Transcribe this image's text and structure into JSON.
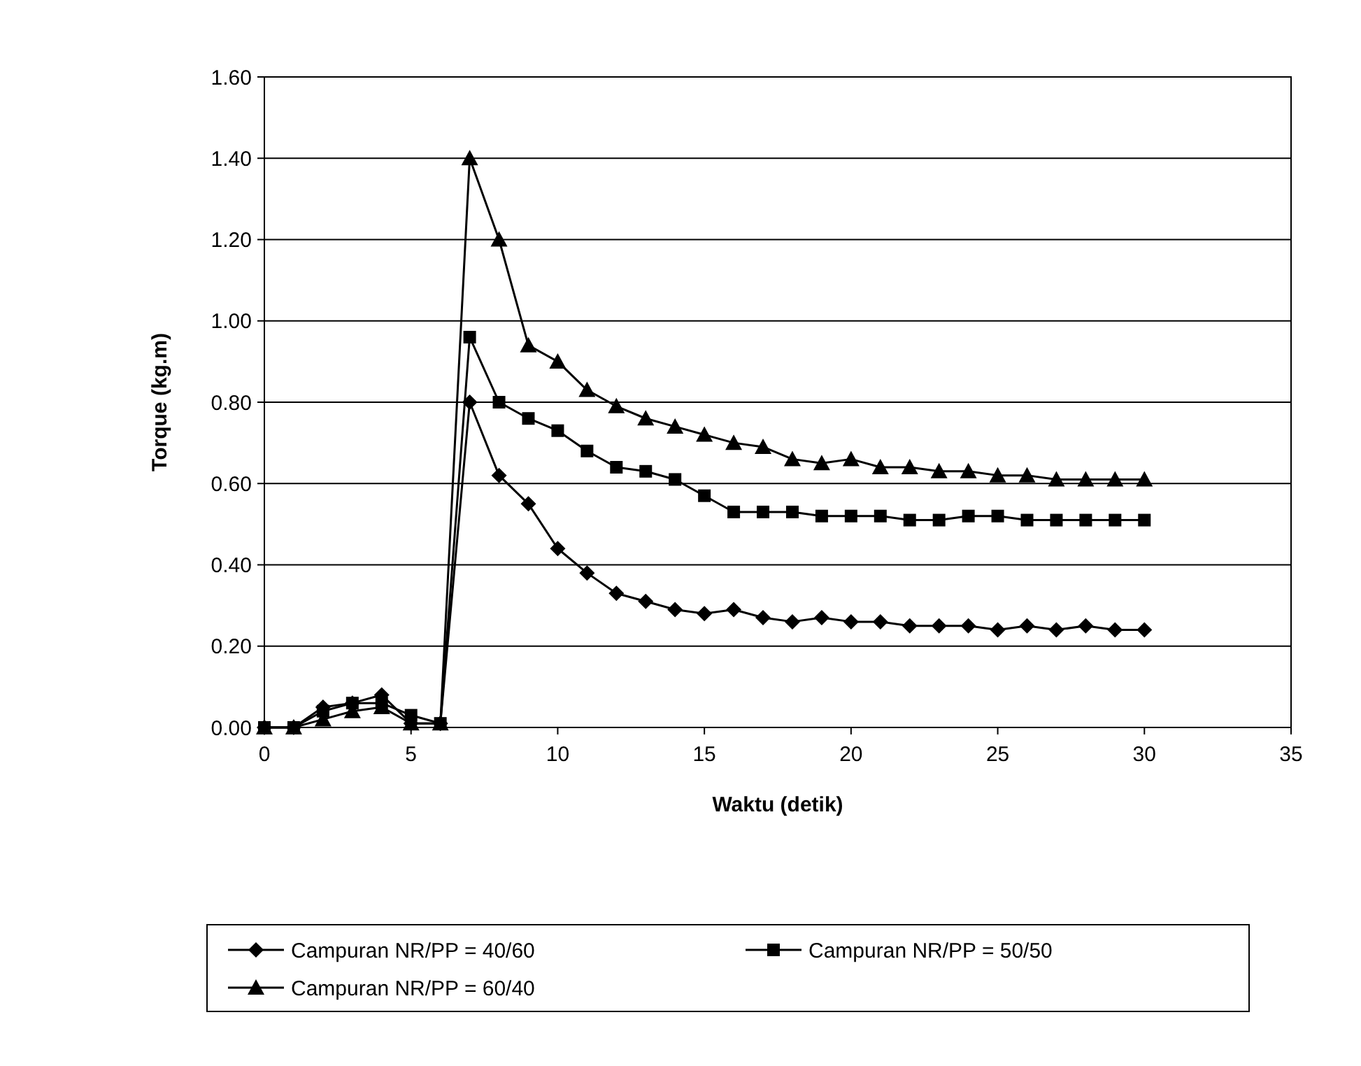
{
  "chart_data": {
    "type": "line",
    "xlabel": "Waktu (detik)",
    "ylabel": "Torque (kg.m)",
    "x": [
      0,
      1,
      2,
      3,
      4,
      5,
      6,
      7,
      8,
      9,
      10,
      11,
      12,
      13,
      14,
      15,
      16,
      17,
      18,
      19,
      20,
      21,
      22,
      23,
      24,
      25,
      26,
      27,
      28,
      29,
      30
    ],
    "xlim": [
      0,
      35
    ],
    "xticks": [
      0,
      5,
      10,
      15,
      20,
      25,
      30,
      35
    ],
    "ylim": [
      0,
      1.6
    ],
    "yticks": [
      {
        "value": 0,
        "label": "0.00"
      },
      {
        "value": 0.2,
        "label": "0.20"
      },
      {
        "value": 0.4,
        "label": "0.40"
      },
      {
        "value": 0.6,
        "label": "0.60"
      },
      {
        "value": 0.8,
        "label": "0.80"
      },
      {
        "value": 1,
        "label": "1.00"
      },
      {
        "value": 1.2,
        "label": "1.20"
      },
      {
        "value": 1.4,
        "label": "1.40"
      },
      {
        "value": 1.6,
        "label": "1.60"
      }
    ],
    "grid": "y",
    "legend": "bottom",
    "line_style": "solid",
    "series": [
      {
        "name": "Campuran NR/PP = 40/60",
        "color": "#000000",
        "marker": "diamond",
        "values": [
          0,
          0,
          0.05,
          0.06,
          0.08,
          0.01,
          0.01,
          0.8,
          0.62,
          0.55,
          0.44,
          0.38,
          0.33,
          0.31,
          0.29,
          0.28,
          0.29,
          0.27,
          0.26,
          0.27,
          0.26,
          0.26,
          0.25,
          0.25,
          0.25,
          0.24,
          0.25,
          0.24,
          0.25,
          0.24,
          0.24
        ]
      },
      {
        "name": "Campuran NR/PP = 50/50",
        "color": "#000000",
        "marker": "square",
        "values": [
          0,
          0,
          0.04,
          0.06,
          0.06,
          0.03,
          0.01,
          0.96,
          0.8,
          0.76,
          0.73,
          0.68,
          0.64,
          0.63,
          0.61,
          0.57,
          0.53,
          0.53,
          0.53,
          0.52,
          0.52,
          0.52,
          0.51,
          0.51,
          0.52,
          0.52,
          0.51,
          0.51,
          0.51,
          0.51,
          0.51
        ]
      },
      {
        "name": "Campuran NR/PP = 60/40",
        "color": "#000000",
        "marker": "triangle",
        "values": [
          0,
          0,
          0.02,
          0.04,
          0.05,
          0.01,
          0.01,
          1.4,
          1.2,
          0.94,
          0.9,
          0.83,
          0.79,
          0.76,
          0.74,
          0.72,
          0.7,
          0.69,
          0.66,
          0.65,
          0.66,
          0.64,
          0.64,
          0.63,
          0.63,
          0.62,
          0.62,
          0.61,
          0.61,
          0.61,
          0.61
        ]
      }
    ]
  }
}
